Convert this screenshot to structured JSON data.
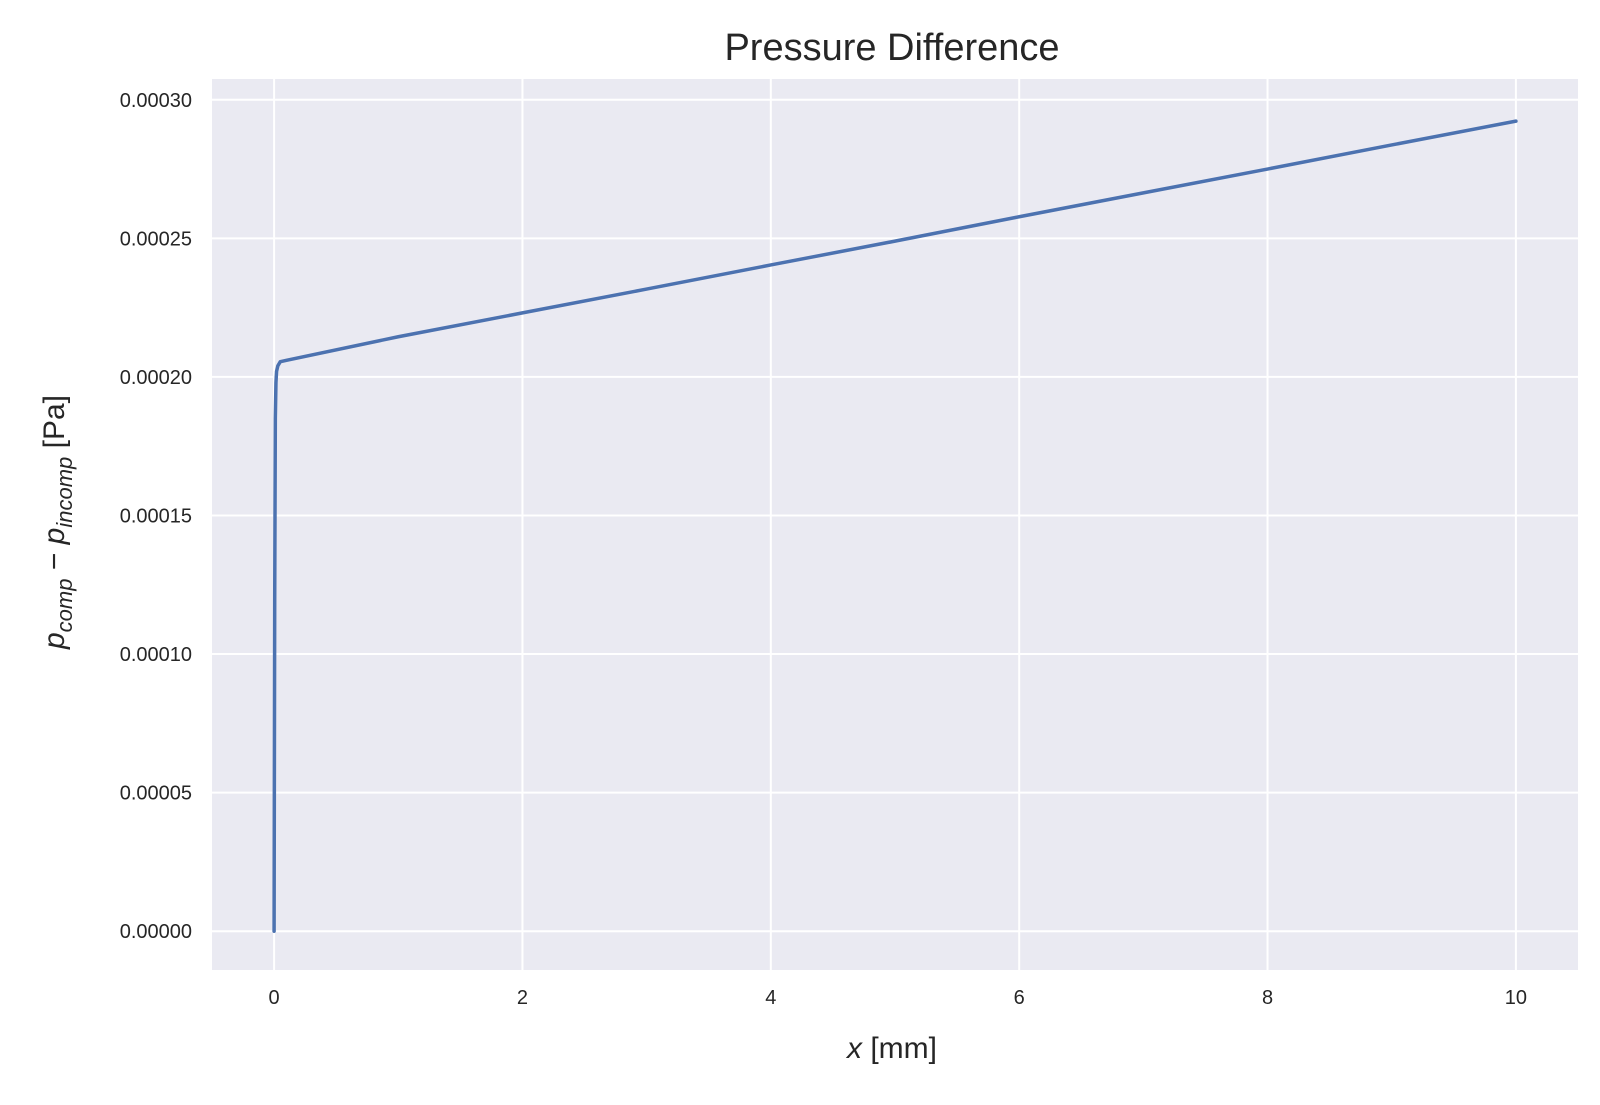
{
  "chart_data": {
    "type": "line",
    "title": "Pressure Difference",
    "xlabel": "x [mm]",
    "xlabel_var": "x",
    "xlabel_unit": " [mm]",
    "ylabel": "p_comp − p_incomp [Pa]",
    "ylabel_p1": "p",
    "ylabel_sub1": "comp",
    "ylabel_minus": " − ",
    "ylabel_p2": "p",
    "ylabel_sub2": "incomp",
    "ylabel_unit": " [Pa]",
    "xlim": [
      -0.5,
      10.5
    ],
    "ylim": [
      -1.4e-05,
      0.0003075
    ],
    "x_ticks": [
      0,
      2,
      4,
      6,
      8,
      10
    ],
    "x_tick_labels": [
      "0",
      "2",
      "4",
      "6",
      "8",
      "10"
    ],
    "y_ticks": [
      0,
      5e-05,
      0.0001,
      0.00015,
      0.0002,
      0.00025,
      0.0003
    ],
    "y_tick_labels": [
      "0.00000",
      "0.00005",
      "0.00010",
      "0.00015",
      "0.00020",
      "0.00025",
      "0.00030"
    ],
    "grid": true,
    "background_color": "#EAEAF2",
    "grid_color": "#FFFFFF",
    "series": [
      {
        "color": "#4C72B0",
        "x": [
          0,
          0.002,
          0.005,
          0.01,
          0.015,
          0.02,
          0.03,
          0.05,
          0.1,
          1,
          2,
          3,
          4,
          5,
          6,
          7,
          8,
          9,
          10
        ],
        "y": [
          0,
          5e-05,
          0.00012,
          0.000185,
          0.000198,
          0.000202,
          0.000204,
          0.0002055,
          0.000206,
          0.0002145,
          0.0002231,
          0.0002317,
          0.0002404,
          0.000249,
          0.0002578,
          0.0002664,
          0.000275,
          0.0002837,
          0.0002923
        ]
      }
    ]
  }
}
